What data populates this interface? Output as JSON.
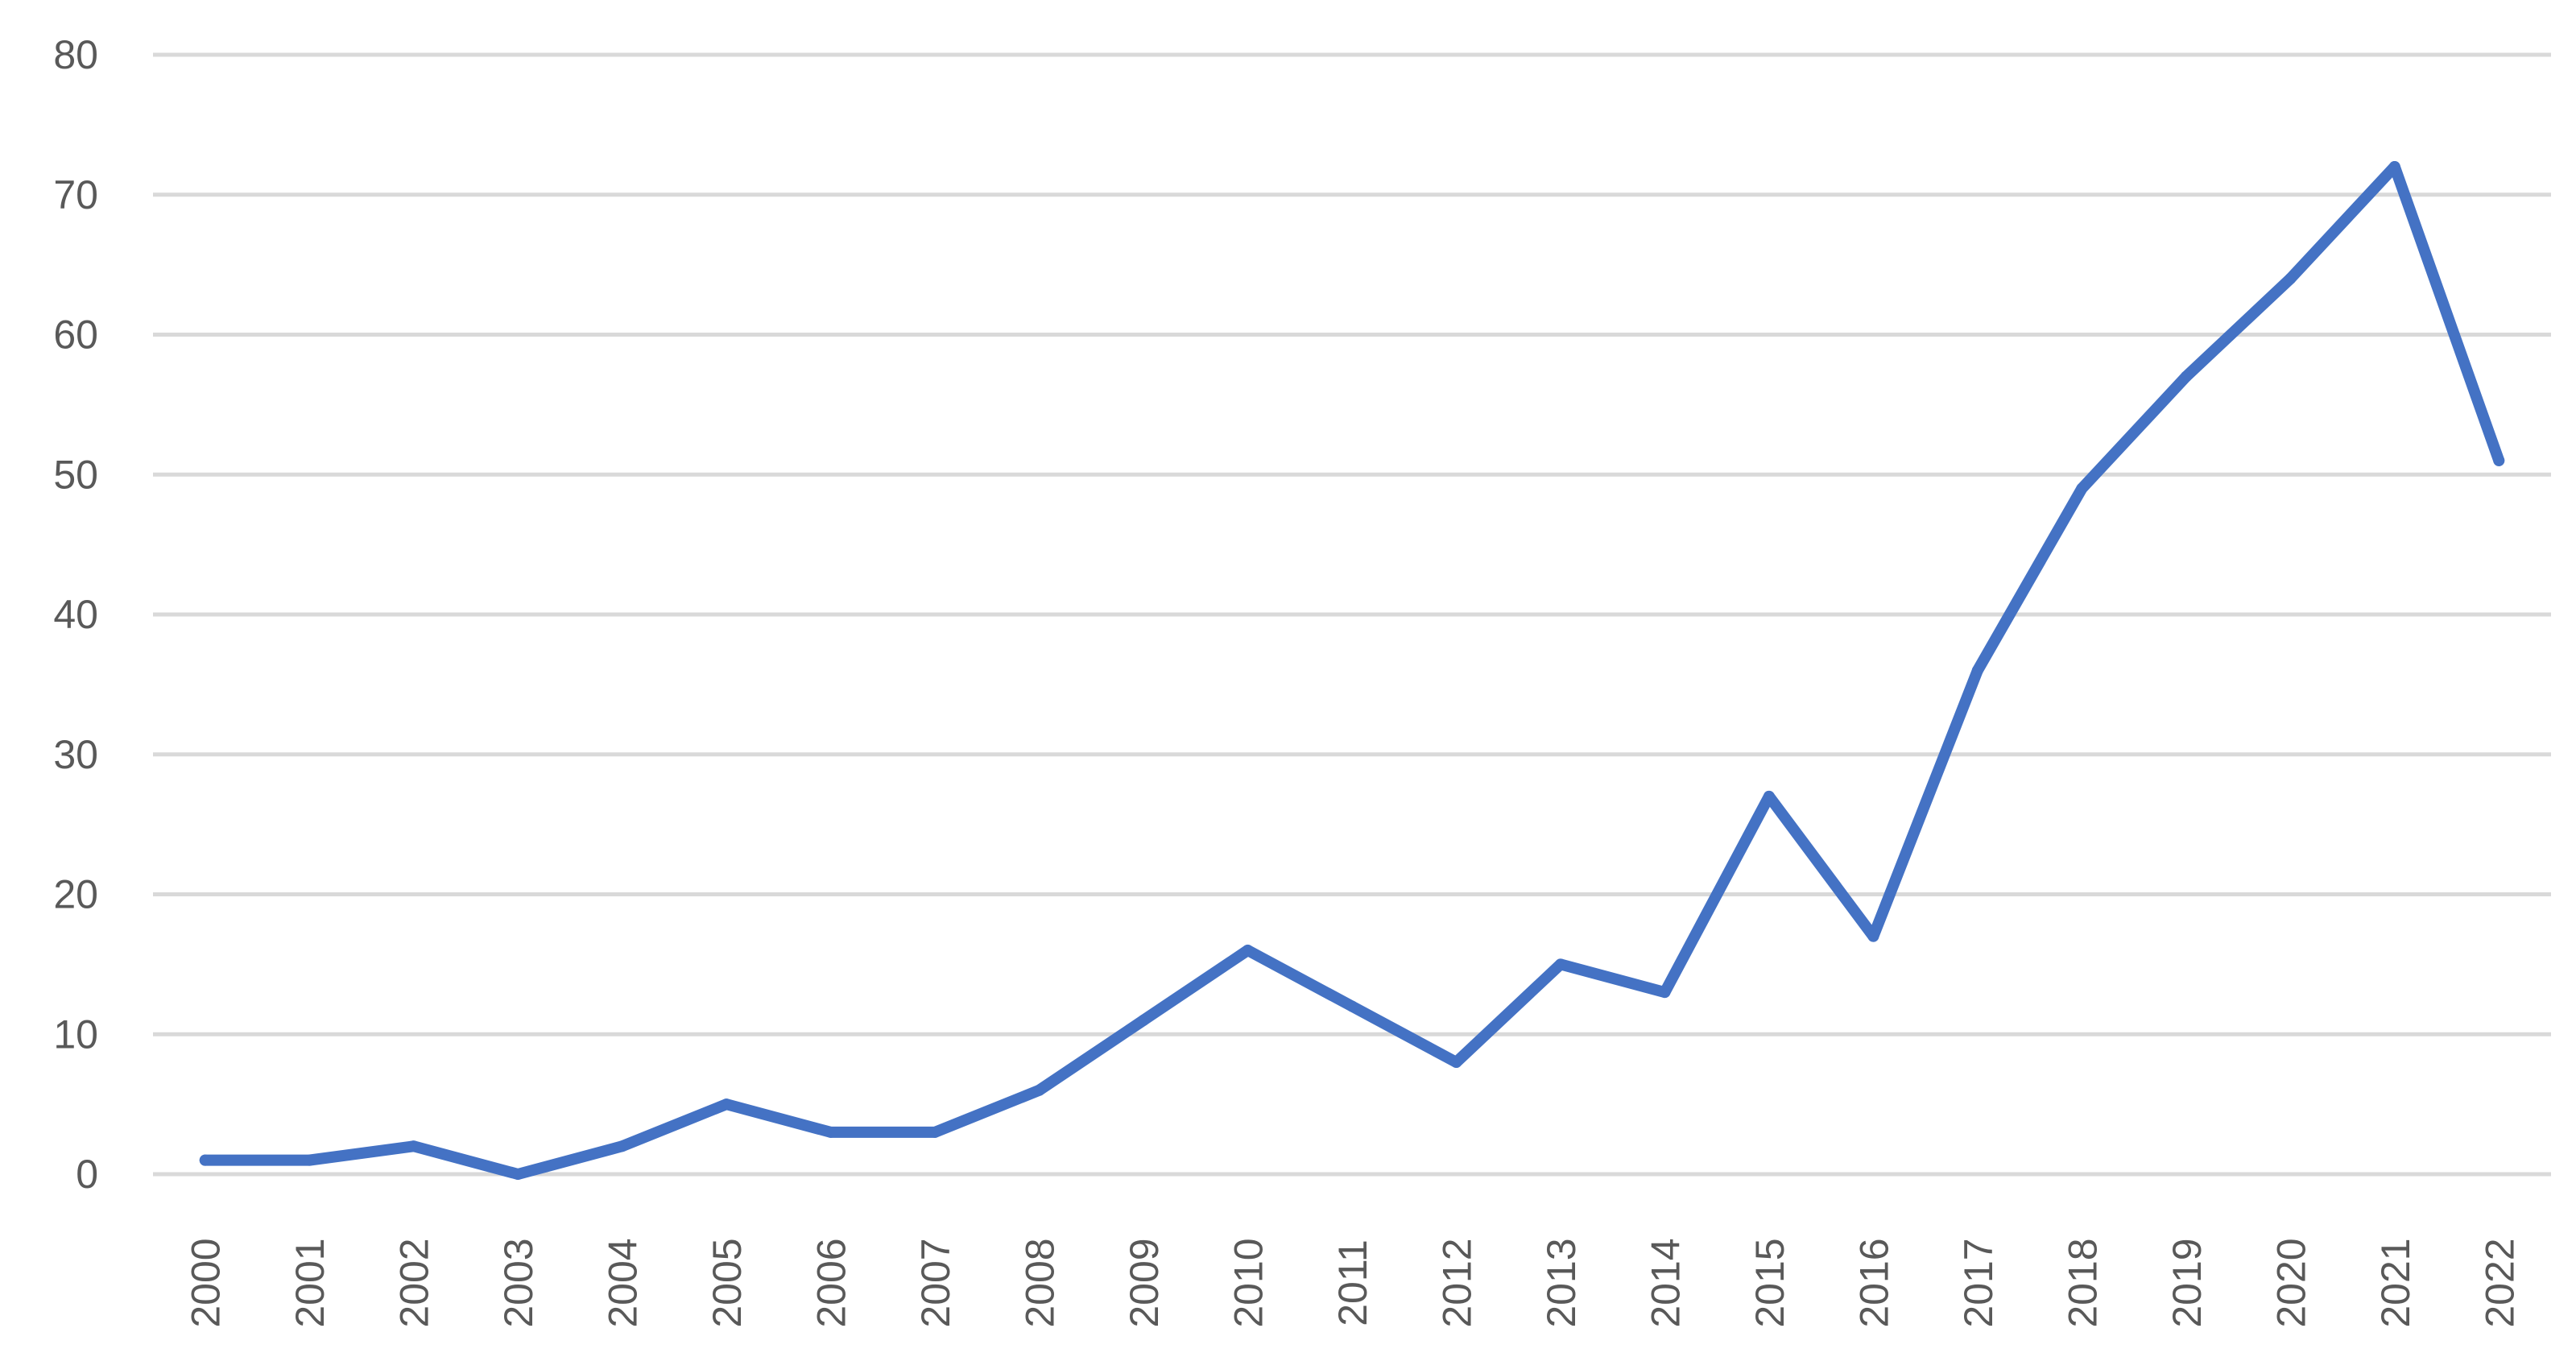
{
  "chart_data": {
    "type": "line",
    "title": "",
    "xlabel": "",
    "ylabel": "",
    "categories": [
      "2000",
      "2001",
      "2002",
      "2003",
      "2004",
      "2005",
      "2006",
      "2007",
      "2008",
      "2009",
      "2010",
      "2011",
      "2012",
      "2013",
      "2014",
      "2015",
      "2016",
      "2017",
      "2018",
      "2019",
      "2020",
      "2021",
      "2022"
    ],
    "series": [
      {
        "values": [
          1,
          1,
          2,
          0,
          2,
          5,
          3,
          3,
          6,
          11,
          16,
          12,
          8,
          15,
          13,
          27,
          17,
          36,
          49,
          57,
          64,
          72,
          51
        ],
        "color": "#4472c4"
      }
    ],
    "ylim": [
      0,
      80
    ],
    "yticks": [
      0,
      10,
      20,
      30,
      40,
      50,
      60,
      70,
      80
    ],
    "grid": true,
    "legend": "none"
  }
}
